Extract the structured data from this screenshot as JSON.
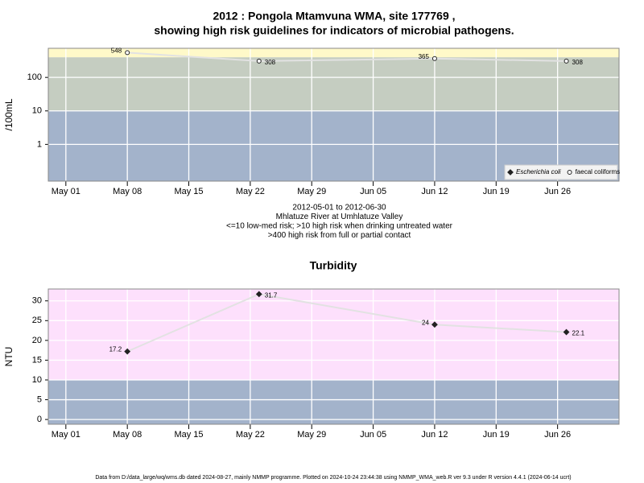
{
  "chart_data": [
    {
      "type": "line",
      "log": true,
      "grid": true,
      "title": "2012 : Pongola Mtamvuna WMA, site 177769 ,",
      "subtitle": "showing high risk guidelines for indicators of microbial pathogens.",
      "ylabel": "/100mL",
      "notes": [
        "2012-05-01 to 2012-06-30",
        "Mhlatuze River at Umhlatuze Valley",
        "<=10 low-med risk; >10 high risk when drinking untreated water",
        ">400 high risk from full or partial contact"
      ],
      "x": [
        "2012-05-08",
        "2012-05-23",
        "2012-06-12",
        "2012-06-27"
      ],
      "xlim": [
        "2012-04-29",
        "2012-07-03"
      ],
      "xticks": [
        {
          "value": "2012-05-01",
          "label": "May 01"
        },
        {
          "value": "2012-05-08",
          "label": "May 08"
        },
        {
          "value": "2012-05-15",
          "label": "May 15"
        },
        {
          "value": "2012-05-22",
          "label": "May 22"
        },
        {
          "value": "2012-05-29",
          "label": "May 29"
        },
        {
          "value": "2012-06-05",
          "label": "Jun 05"
        },
        {
          "value": "2012-06-12",
          "label": "Jun 12"
        },
        {
          "value": "2012-06-19",
          "label": "Jun 19"
        },
        {
          "value": "2012-06-26",
          "label": "Jun 26"
        }
      ],
      "ylim": [
        0.08,
        740
      ],
      "yticks": [
        1,
        10,
        100
      ],
      "bands": [
        {
          "to": 10,
          "color": "#a3b3cb"
        },
        {
          "to": 400,
          "color": "#c5cdc1"
        },
        {
          "to": 740,
          "color": "#fff9c9"
        }
      ],
      "line_color": "#e2e2e2",
      "legend": "lower right",
      "series": [
        {
          "name": "Escherichia coli",
          "color": "#222222",
          "marker": "diamond",
          "values": [
            null,
            null,
            null,
            null
          ]
        },
        {
          "name": "faecal coliforms",
          "color": "#222222",
          "marker": "circle",
          "values": [
            548,
            308,
            365,
            308
          ]
        }
      ]
    },
    {
      "type": "line",
      "log": false,
      "grid": true,
      "title": "Turbidity",
      "ylabel": "NTU",
      "x": [
        "2012-05-08",
        "2012-05-23",
        "2012-06-12",
        "2012-06-27"
      ],
      "xlim": [
        "2012-04-29",
        "2012-07-03"
      ],
      "xticks": [
        {
          "value": "2012-05-01",
          "label": "May 01"
        },
        {
          "value": "2012-05-08",
          "label": "May 08"
        },
        {
          "value": "2012-05-15",
          "label": "May 15"
        },
        {
          "value": "2012-05-22",
          "label": "May 22"
        },
        {
          "value": "2012-05-29",
          "label": "May 29"
        },
        {
          "value": "2012-06-05",
          "label": "Jun 05"
        },
        {
          "value": "2012-06-12",
          "label": "Jun 12"
        },
        {
          "value": "2012-06-19",
          "label": "Jun 19"
        },
        {
          "value": "2012-06-26",
          "label": "Jun 26"
        }
      ],
      "ylim": [
        -1.2,
        33
      ],
      "yticks": [
        0,
        5,
        10,
        15,
        20,
        25,
        30
      ],
      "bands": [
        {
          "to": 10,
          "color": "#a3b3cb"
        },
        {
          "to": 33,
          "color": "#fde0fc"
        }
      ],
      "line_color": "#e2e2e2",
      "series": [
        {
          "color": "#222222",
          "marker": "diamond",
          "values": [
            17.2,
            31.7,
            24,
            22.1
          ]
        }
      ]
    }
  ],
  "footer": "Data from D:/data_large/wq/wms.db dated 2024-08-27, mainly NMMP programme. Plotted on 2024-10-24 23:44:38 using NMMP_WMA_web.R ver 9.3 under R version 4.4.1 (2024-06-14 ucrt)"
}
